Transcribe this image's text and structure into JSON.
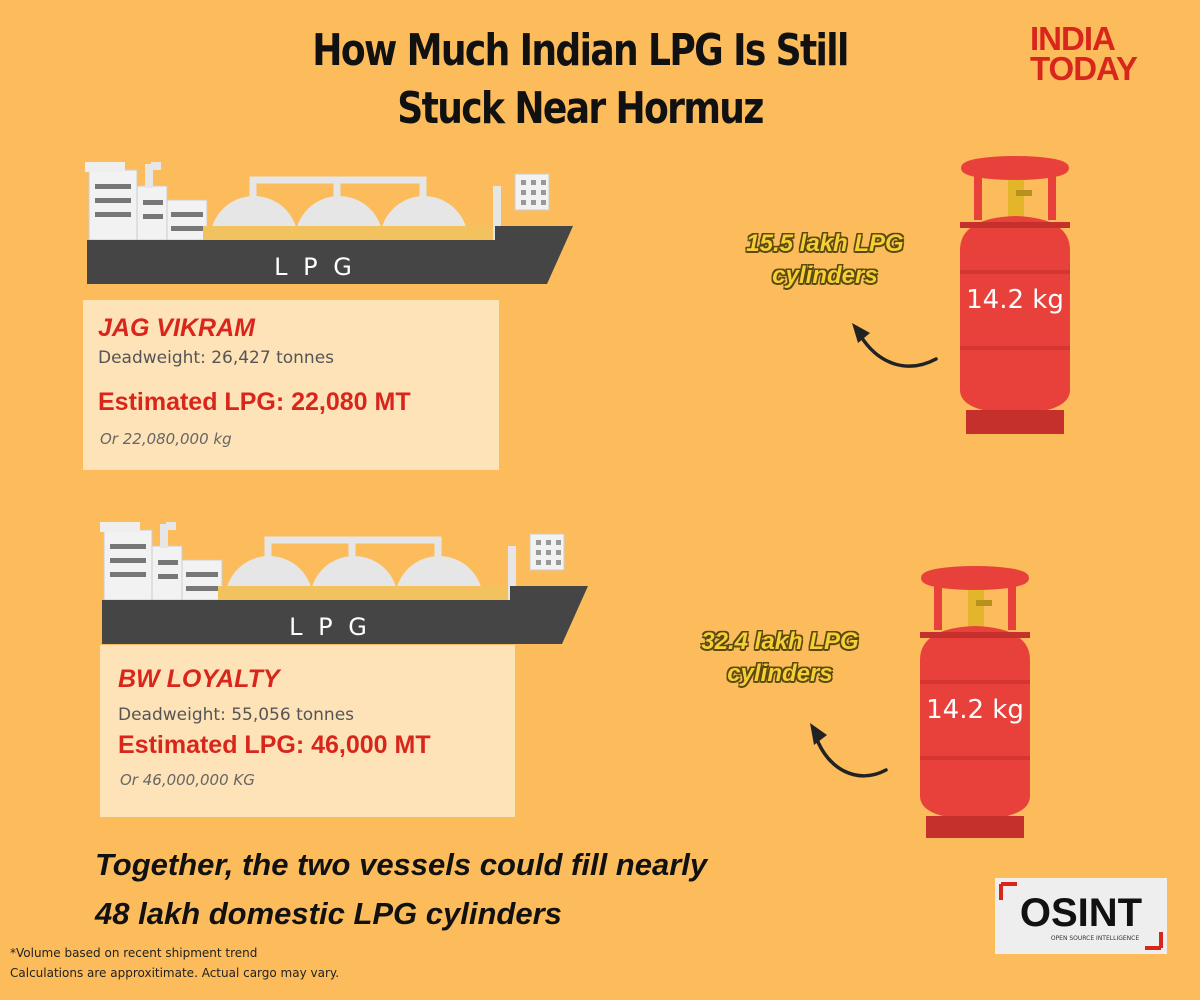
{
  "title_line1": "How Much Indian LPG Is Still",
  "title_line2": "Stuck Near Hormuz",
  "logo_line1": "INDIA",
  "logo_line2": "TODAY",
  "ship_hull_text": "L P G",
  "vessels": [
    {
      "name": "JAG VIKRAM",
      "deadweight": "Deadweight: 26,427 tonnes",
      "estimated": "Estimated LPG: 22,080 MT",
      "alt": "Or 22,080,000 kg",
      "cylinders_line1": "15.5 lakh LPG",
      "cylinders_line2": "cylinders",
      "cylinder_weight": "14.2 kg"
    },
    {
      "name": "BW LOYALTY",
      "deadweight": "Deadweight: 55,056 tonnes",
      "estimated": "Estimated LPG: 46,000 MT",
      "alt": "Or 46,000,000 KG",
      "cylinders_line1": "32.4 lakh LPG",
      "cylinders_line2": "cylinders",
      "cylinder_weight": "14.2 kg"
    }
  ],
  "summary_line1": "Together, the two vessels could fill nearly",
  "summary_line2": "48 lakh domestic LPG cylinders",
  "footnote1": "*Volume based on recent shipment trend",
  "footnote2": "Calculations are approxitimate. Actual cargo may vary.",
  "osint_label": "OSINT",
  "osint_sub": "OPEN SOURCE INTELLIGENCE",
  "colors": {
    "background": "#fcbc5c",
    "accent_red": "#d9261c",
    "cylinder_red": "#e8413c",
    "hull": "#454545",
    "label_yellow": "#f8cf36"
  }
}
